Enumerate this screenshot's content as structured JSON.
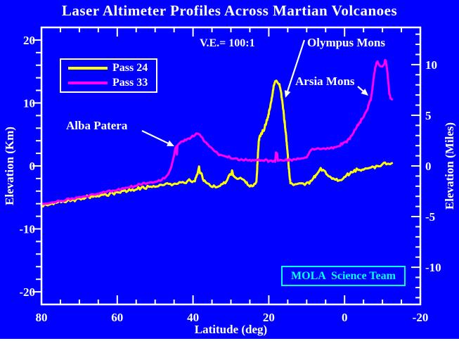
{
  "window": {
    "background_color": "#0000FF",
    "frame_color": "#FFFFFF",
    "accent_color": "#00FFFF"
  },
  "labels": {
    "ve": "V.E.= 100:1",
    "olympus_mons": "Olympus Mons",
    "arsia_mons": "Arsia Mons",
    "alba_patera": "Alba Patera",
    "mola_badge": "MOLA  Science Team"
  },
  "chart_data": {
    "type": "line",
    "title": "Laser Altimeter Profiles Across Martian Volcanoes",
    "xlabel": "Latitude (deg)",
    "ylabel_left": "Elevation (Km)",
    "ylabel_right": "Elevation (Miles)",
    "x_range": [
      80,
      -20
    ],
    "y_range_km": [
      -22,
      22
    ],
    "x_major_ticks": [
      80,
      60,
      40,
      20,
      0,
      -20
    ],
    "x_minor_step_deg": 5,
    "y_left_major_ticks_km": [
      20,
      10,
      0,
      -10,
      -20
    ],
    "y_left_minor_step_km": 2,
    "y_right_major_ticks_miles": [
      10,
      5,
      0,
      -5,
      -10
    ],
    "y_right_minor_step_miles": 1,
    "km_per_mile": 1.609344,
    "grid": false,
    "legend_position": "top-left",
    "vertical_exaggeration": "100:1",
    "text_color": "#FFFFFF",
    "series": [
      {
        "name": "Pass 24",
        "color": "#FFFF00",
        "points": [
          [
            80,
            -6.3
          ],
          [
            76,
            -5.9
          ],
          [
            72,
            -5.5
          ],
          [
            68,
            -5.0
          ],
          [
            64,
            -4.6
          ],
          [
            60,
            -4.2
          ],
          [
            56,
            -3.8
          ],
          [
            52,
            -3.4
          ],
          [
            48,
            -3.1
          ],
          [
            44,
            -2.7
          ],
          [
            41,
            -2.4
          ],
          [
            39.5,
            -2.2
          ],
          [
            39,
            -1.4
          ],
          [
            38.4,
            -0.4
          ],
          [
            38,
            -1.1
          ],
          [
            37.4,
            -2.0
          ],
          [
            36.5,
            -2.7
          ],
          [
            35.5,
            -3.2
          ],
          [
            34.5,
            -3.4
          ],
          [
            33.5,
            -3.35
          ],
          [
            32.5,
            -3.1
          ],
          [
            31.5,
            -2.5
          ],
          [
            30.5,
            -1.8
          ],
          [
            30,
            -1.3
          ],
          [
            29.7,
            -0.9
          ],
          [
            29.4,
            -1.4
          ],
          [
            29,
            -1.7
          ],
          [
            28,
            -1.9
          ],
          [
            27,
            -2.0
          ],
          [
            26.3,
            -2.2
          ],
          [
            25.6,
            -2.8
          ],
          [
            25,
            -3.2
          ],
          [
            24.4,
            -3.1
          ],
          [
            23.8,
            -2.9
          ],
          [
            23.3,
            -2.6
          ],
          [
            23.1,
            -1.0
          ],
          [
            22.9,
            1.5
          ],
          [
            22.7,
            3.4
          ],
          [
            22.5,
            4.5
          ],
          [
            22.2,
            4.9
          ],
          [
            21.8,
            5.2
          ],
          [
            21.3,
            5.8
          ],
          [
            20.8,
            6.6
          ],
          [
            20.3,
            7.6
          ],
          [
            19.8,
            8.9
          ],
          [
            19.3,
            10.4
          ],
          [
            18.9,
            11.9
          ],
          [
            18.6,
            12.9
          ],
          [
            18.3,
            13.3
          ],
          [
            18,
            13.45
          ],
          [
            17.6,
            13.4
          ],
          [
            17.3,
            13.1
          ],
          [
            17,
            12.4
          ],
          [
            16.7,
            11.4
          ],
          [
            16.4,
            10.1
          ],
          [
            16.1,
            8.6
          ],
          [
            15.8,
            6.9
          ],
          [
            15.5,
            5.1
          ],
          [
            15.2,
            3.2
          ],
          [
            14.9,
            1.2
          ],
          [
            14.7,
            -0.5
          ],
          [
            14.5,
            -1.8
          ],
          [
            14.3,
            -2.6
          ],
          [
            14,
            -2.85
          ],
          [
            13,
            -2.9
          ],
          [
            12,
            -2.85
          ],
          [
            11,
            -2.75
          ],
          [
            10,
            -2.65
          ],
          [
            9.3,
            -2.5
          ],
          [
            8.7,
            -2.2
          ],
          [
            8,
            -1.8
          ],
          [
            7.4,
            -1.3
          ],
          [
            6.8,
            -0.8
          ],
          [
            6.3,
            -0.5
          ],
          [
            6,
            -0.55
          ],
          [
            5.4,
            -0.8
          ],
          [
            4.8,
            -1.1
          ],
          [
            4.2,
            -1.5
          ],
          [
            3.6,
            -1.8
          ],
          [
            3,
            -2.1
          ],
          [
            2.4,
            -2.3
          ],
          [
            1.8,
            -2.4
          ],
          [
            1.3,
            -2.45
          ],
          [
            0.8,
            -2.3
          ],
          [
            0.3,
            -2.0
          ],
          [
            -0.2,
            -1.7
          ],
          [
            -0.8,
            -1.35
          ],
          [
            -1.4,
            -1.1
          ],
          [
            -2,
            -0.9
          ],
          [
            -2.6,
            -0.8
          ],
          [
            -3.2,
            -0.7
          ],
          [
            -4,
            -0.6
          ],
          [
            -5,
            -0.45
          ],
          [
            -6,
            -0.35
          ],
          [
            -7,
            -0.25
          ],
          [
            -8,
            -0.1
          ],
          [
            -9,
            0.05
          ],
          [
            -10,
            0.15
          ],
          [
            -11,
            0.3
          ],
          [
            -12,
            0.4
          ],
          [
            -12.5,
            0.45
          ]
        ]
      },
      {
        "name": "Pass 33",
        "color": "#FF00FF",
        "points": [
          [
            80,
            -6.2
          ],
          [
            76,
            -5.7
          ],
          [
            72,
            -5.2
          ],
          [
            68,
            -4.8
          ],
          [
            64,
            -4.3
          ],
          [
            60,
            -3.8
          ],
          [
            57,
            -3.4
          ],
          [
            54,
            -3.0
          ],
          [
            51,
            -2.6
          ],
          [
            49,
            -2.3
          ],
          [
            47.5,
            -2.0
          ],
          [
            46.8,
            -1.6
          ],
          [
            46.3,
            -1.0
          ],
          [
            45.8,
            -0.2
          ],
          [
            45.3,
            0.9
          ],
          [
            44.9,
            2.0
          ],
          [
            44.6,
            2.9
          ],
          [
            44.4,
            3.2
          ],
          [
            44.25,
            1.9
          ],
          [
            44.1,
            3.3
          ],
          [
            43.5,
            3.6
          ],
          [
            42.5,
            3.9
          ],
          [
            41.5,
            4.2
          ],
          [
            40.5,
            4.5
          ],
          [
            39.8,
            4.8
          ],
          [
            39.2,
            5.05
          ],
          [
            38.6,
            5.1
          ],
          [
            38.1,
            4.9
          ],
          [
            37.5,
            4.4
          ],
          [
            36.5,
            3.6
          ],
          [
            35.5,
            2.9
          ],
          [
            34.5,
            2.4
          ],
          [
            33.5,
            2.0
          ],
          [
            32.5,
            1.7
          ],
          [
            31.5,
            1.5
          ],
          [
            30.5,
            1.35
          ],
          [
            29.5,
            1.25
          ],
          [
            28,
            1.1
          ],
          [
            26.5,
            1.0
          ],
          [
            25,
            0.95
          ],
          [
            23.5,
            0.9
          ],
          [
            22,
            0.85
          ],
          [
            20.5,
            0.85
          ],
          [
            19,
            0.8
          ],
          [
            18.3,
            0.85
          ],
          [
            18.1,
            2.1
          ],
          [
            17.8,
            2.1
          ],
          [
            17.6,
            0.9
          ],
          [
            16.5,
            0.9
          ],
          [
            15,
            0.95
          ],
          [
            13.5,
            1.0
          ],
          [
            12,
            1.1
          ],
          [
            10.8,
            1.2
          ],
          [
            10,
            1.4
          ],
          [
            9.4,
            2.0
          ],
          [
            9,
            2.55
          ],
          [
            8,
            2.65
          ],
          [
            7,
            2.7
          ],
          [
            6,
            2.75
          ],
          [
            5,
            2.8
          ],
          [
            4,
            2.85
          ],
          [
            3,
            2.9
          ],
          [
            2.4,
            3.0
          ],
          [
            1.8,
            3.15
          ],
          [
            1.2,
            3.3
          ],
          [
            0.6,
            3.45
          ],
          [
            0,
            3.65
          ],
          [
            -0.6,
            3.9
          ],
          [
            -1.2,
            4.3
          ],
          [
            -1.8,
            4.8
          ],
          [
            -2.4,
            5.4
          ],
          [
            -3,
            6.0
          ],
          [
            -3.6,
            6.6
          ],
          [
            -4.2,
            7.1
          ],
          [
            -4.8,
            7.6
          ],
          [
            -5.4,
            8.2
          ],
          [
            -6,
            9.0
          ],
          [
            -6.5,
            9.9
          ],
          [
            -6.9,
            10.6
          ],
          [
            -7.2,
            11.6
          ],
          [
            -7.5,
            13.0
          ],
          [
            -7.8,
            14.5
          ],
          [
            -8.1,
            15.6
          ],
          [
            -8.4,
            16.3
          ],
          [
            -8.7,
            16.55
          ],
          [
            -9,
            16.1
          ],
          [
            -9.4,
            15.85
          ],
          [
            -9.9,
            15.9
          ],
          [
            -10.4,
            16.1
          ],
          [
            -10.7,
            16.65
          ],
          [
            -10.9,
            16.6
          ],
          [
            -11.2,
            15.6
          ],
          [
            -11.5,
            13.5
          ],
          [
            -11.8,
            11.6
          ],
          [
            -12.1,
            10.8
          ],
          [
            -12.5,
            10.55
          ]
        ]
      }
    ]
  }
}
